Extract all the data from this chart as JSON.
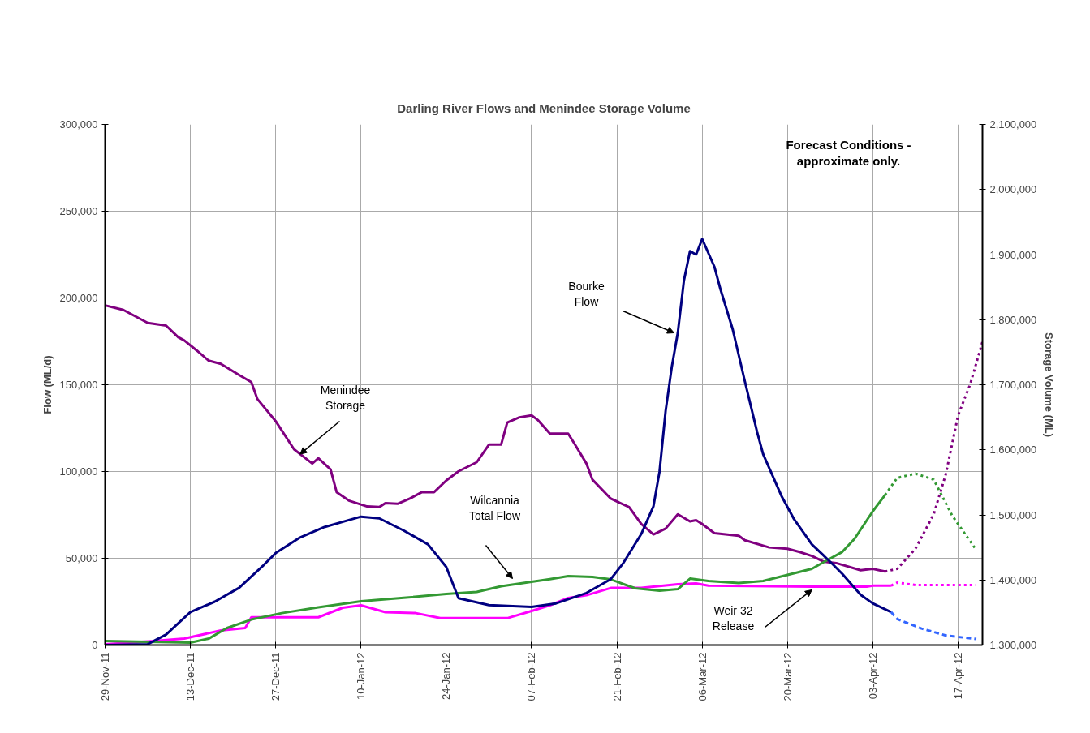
{
  "chart_data": {
    "type": "line",
    "title": "Darling River Flows and Menindee Storage Volume",
    "ylabel": "Flow (ML/d)",
    "y2label": "Storage Volume (ML)",
    "xlim": [
      "2011-11-29",
      "2012-04-21"
    ],
    "xticks": [
      {
        "value": "2011-11-29",
        "label": "29-Nov-11"
      },
      {
        "value": "2011-12-13",
        "label": "13-Dec-11"
      },
      {
        "value": "2011-12-27",
        "label": "27-Dec-11"
      },
      {
        "value": "2012-01-10",
        "label": "10-Jan-12"
      },
      {
        "value": "2012-01-24",
        "label": "24-Jan-12"
      },
      {
        "value": "2012-02-07",
        "label": "07-Feb-12"
      },
      {
        "value": "2012-02-21",
        "label": "21-Feb-12"
      },
      {
        "value": "2012-03-06",
        "label": "06-Mar-12"
      },
      {
        "value": "2012-03-20",
        "label": "20-Mar-12"
      },
      {
        "value": "2012-04-03",
        "label": "03-Apr-12"
      },
      {
        "value": "2012-04-17",
        "label": "17-Apr-12"
      }
    ],
    "ylim": [
      0,
      300000
    ],
    "yticks": [
      0,
      {
        "value": 50000,
        "label": "50,000"
      },
      {
        "value": 100000,
        "label": "100,000"
      },
      {
        "value": 150000,
        "label": "150,000"
      },
      {
        "value": 200000,
        "label": "200,000"
      },
      {
        "value": 250000,
        "label": "250,000"
      },
      {
        "value": 300000,
        "label": "300,000"
      }
    ],
    "y2lim": [
      1300000,
      2100000
    ],
    "y2ticks": [
      {
        "value": 1300000,
        "label": "1,300,000"
      },
      {
        "value": 1400000,
        "label": "1,400,000"
      },
      {
        "value": 1500000,
        "label": "1,500,000"
      },
      {
        "value": 1600000,
        "label": "1,600,000"
      },
      {
        "value": 1700000,
        "label": "1,700,000"
      },
      {
        "value": 1800000,
        "label": "1,800,000"
      },
      {
        "value": 1900000,
        "label": "1,900,000"
      },
      {
        "value": 2000000,
        "label": "2,000,000"
      },
      {
        "value": 2100000,
        "label": "2,100,000"
      }
    ],
    "grid": true,
    "line_style": "solid",
    "series": [
      {
        "color": "#800080",
        "axis": "y2",
        "x": [
          "2011-11-29",
          "2011-12-02",
          "2011-12-04",
          "2011-12-06",
          "2011-12-09",
          "2011-12-11",
          "2011-12-12",
          "2011-12-14",
          "2011-12-16",
          "2011-12-18",
          "2011-12-21",
          "2011-12-23",
          "2011-12-24",
          "2011-12-27",
          "2011-12-30",
          "2012-01-02",
          "2012-01-03",
          "2012-01-05",
          "2012-01-06",
          "2012-01-08",
          "2012-01-11",
          "2012-01-13",
          "2012-01-14",
          "2012-01-16",
          "2012-01-18",
          "2012-01-20",
          "2012-01-22",
          "2012-01-24",
          "2012-01-26",
          "2012-01-29",
          "2012-01-31",
          "2012-02-02",
          "2012-02-03",
          "2012-02-05",
          "2012-02-07",
          "2012-02-08",
          "2012-02-10",
          "2012-02-13",
          "2012-02-14",
          "2012-02-16",
          "2012-02-17",
          "2012-02-20",
          "2012-02-23",
          "2012-02-25",
          "2012-02-27",
          "2012-02-29",
          "2012-03-02",
          "2012-03-04",
          "2012-03-05",
          "2012-03-06",
          "2012-03-08",
          "2012-03-12",
          "2012-03-13",
          "2012-03-17",
          "2012-03-20",
          "2012-03-22",
          "2012-03-24",
          "2012-03-26",
          "2012-03-28",
          "2012-04-01",
          "2012-04-03",
          "2012-04-05"
        ],
        "values": [
          1822000,
          1815000,
          1805000,
          1795000,
          1791000,
          1773000,
          1768000,
          1753000,
          1737000,
          1732000,
          1715000,
          1704000,
          1678000,
          1644000,
          1601000,
          1579000,
          1587000,
          1570000,
          1535000,
          1522000,
          1513000,
          1512000,
          1518000,
          1517000,
          1525000,
          1535000,
          1535000,
          1553000,
          1567000,
          1581000,
          1608000,
          1608000,
          1642000,
          1650000,
          1653000,
          1646000,
          1625000,
          1625000,
          1610000,
          1579000,
          1554000,
          1525000,
          1512000,
          1486000,
          1470000,
          1479000,
          1501000,
          1490000,
          1492000,
          1486000,
          1472000,
          1468000,
          1461000,
          1450000,
          1448000,
          1443000,
          1437000,
          1428000,
          1426000,
          1415000,
          1417000,
          1413000
        ]
      },
      {
        "color": "#800080",
        "axis": "y2",
        "line_style": "dotted",
        "x": [
          "2012-04-05",
          "2012-04-07",
          "2012-04-10",
          "2012-04-13",
          "2012-04-15",
          "2012-04-17",
          "2012-04-19",
          "2012-04-21"
        ],
        "values": [
          1413000,
          1417000,
          1448000,
          1501000,
          1563000,
          1653000,
          1701000,
          1766000
        ]
      },
      {
        "color": "#ff00ff",
        "x": [
          "2011-11-29",
          "2011-12-07",
          "2011-12-12",
          "2011-12-18",
          "2011-12-22",
          "2011-12-23",
          "2011-12-27",
          "2012-01-03",
          "2012-01-07",
          "2012-01-10",
          "2012-01-14",
          "2012-01-19",
          "2012-01-23",
          "2012-02-03",
          "2012-02-07",
          "2012-02-10",
          "2012-02-13",
          "2012-02-16",
          "2012-02-20",
          "2012-02-25",
          "2012-03-02",
          "2012-03-05",
          "2012-03-07",
          "2012-03-24",
          "2012-04-02",
          "2012-04-03",
          "2012-04-06"
        ],
        "values": [
          500,
          2300,
          3700,
          8400,
          9800,
          16000,
          16000,
          16000,
          21500,
          22900,
          18900,
          18400,
          15500,
          15500,
          19600,
          22900,
          27100,
          28700,
          32900,
          32900,
          35000,
          35500,
          34200,
          33600,
          33600,
          34200,
          34200
        ]
      },
      {
        "color": "#ff00ff",
        "line_style": "dotted",
        "x": [
          "2012-04-06",
          "2012-04-07",
          "2012-04-10",
          "2012-04-20"
        ],
        "values": [
          34200,
          36000,
          34600,
          34600
        ]
      },
      {
        "color": "#339933",
        "x": [
          "2011-11-29",
          "2011-12-13",
          "2011-12-16",
          "2011-12-19",
          "2011-12-23",
          "2011-12-28",
          "2012-01-03",
          "2012-01-10",
          "2012-01-17",
          "2012-01-24",
          "2012-01-29",
          "2012-02-02",
          "2012-02-07",
          "2012-02-10",
          "2012-02-13",
          "2012-02-17",
          "2012-02-20",
          "2012-02-24",
          "2012-02-28",
          "2012-03-02",
          "2012-03-04",
          "2012-03-07",
          "2012-03-12",
          "2012-03-16",
          "2012-03-20",
          "2012-03-24",
          "2012-03-26",
          "2012-03-29",
          "2012-03-31",
          "2012-04-03",
          "2012-04-05"
        ],
        "values": [
          2300,
          1400,
          3700,
          9800,
          14700,
          18400,
          21700,
          25200,
          27200,
          29400,
          30600,
          33900,
          36400,
          38000,
          39700,
          39300,
          37800,
          32700,
          31300,
          32200,
          38300,
          36900,
          35700,
          36900,
          40400,
          43900,
          47900,
          53700,
          61200,
          77100,
          86400
        ]
      },
      {
        "color": "#339933",
        "line_style": "dotted",
        "x": [
          "2012-04-05",
          "2012-04-07",
          "2012-04-10",
          "2012-04-13",
          "2012-04-16",
          "2012-04-20"
        ],
        "values": [
          86400,
          96300,
          98800,
          95300,
          74800,
          54700
        ]
      },
      {
        "color": "#000080",
        "x": [
          "2011-11-29",
          "2011-12-06",
          "2011-12-09",
          "2011-12-13",
          "2011-12-17",
          "2011-12-21",
          "2011-12-25",
          "2011-12-27",
          "2011-12-31",
          "2012-01-04",
          "2012-01-08",
          "2012-01-10",
          "2012-01-13",
          "2012-01-17",
          "2012-01-21",
          "2012-01-24",
          "2012-01-26",
          "2012-01-31",
          "2012-02-07",
          "2012-02-11",
          "2012-02-16",
          "2012-02-20",
          "2012-02-22",
          "2012-02-25",
          "2012-02-27",
          "2012-02-28",
          "2012-02-29",
          "2012-03-01",
          "2012-03-02",
          "2012-03-03",
          "2012-03-04",
          "2012-03-05",
          "2012-03-06",
          "2012-03-08",
          "2012-03-09",
          "2012-03-11",
          "2012-03-13",
          "2012-03-15",
          "2012-03-16",
          "2012-03-19",
          "2012-03-21",
          "2012-03-24",
          "2012-03-27",
          "2012-03-29",
          "2012-04-01",
          "2012-04-03",
          "2012-04-06"
        ],
        "values": [
          0,
          500,
          6000,
          19000,
          25000,
          33000,
          46000,
          53000,
          62000,
          68000,
          72000,
          74000,
          73000,
          66000,
          58000,
          45000,
          27000,
          23000,
          22000,
          24000,
          30000,
          38000,
          47000,
          64000,
          80000,
          100000,
          135000,
          160000,
          180000,
          210000,
          227000,
          225000,
          234000,
          218000,
          205000,
          182000,
          152000,
          123000,
          110000,
          86000,
          73000,
          58000,
          48000,
          41000,
          29000,
          24000,
          19000
        ]
      },
      {
        "color": "#3366ff",
        "line_style": "dashed",
        "x": [
          "2012-04-06",
          "2012-04-07",
          "2012-04-11",
          "2012-04-15",
          "2012-04-20"
        ],
        "values": [
          19000,
          15000,
          9500,
          5500,
          3500
        ]
      }
    ],
    "annotations": [
      {
        "text": "Menindee\nStorage",
        "x": "2011-12-31",
        "y": 110000
      },
      "Bourke\nFlow",
      "Wilcannia\nTotal Flow",
      {
        "text": "Weir 32\nRelease",
        "x": "2012-03-24",
        "y": 31800
      },
      "Forecast Conditions -\napproximate only."
    ]
  }
}
